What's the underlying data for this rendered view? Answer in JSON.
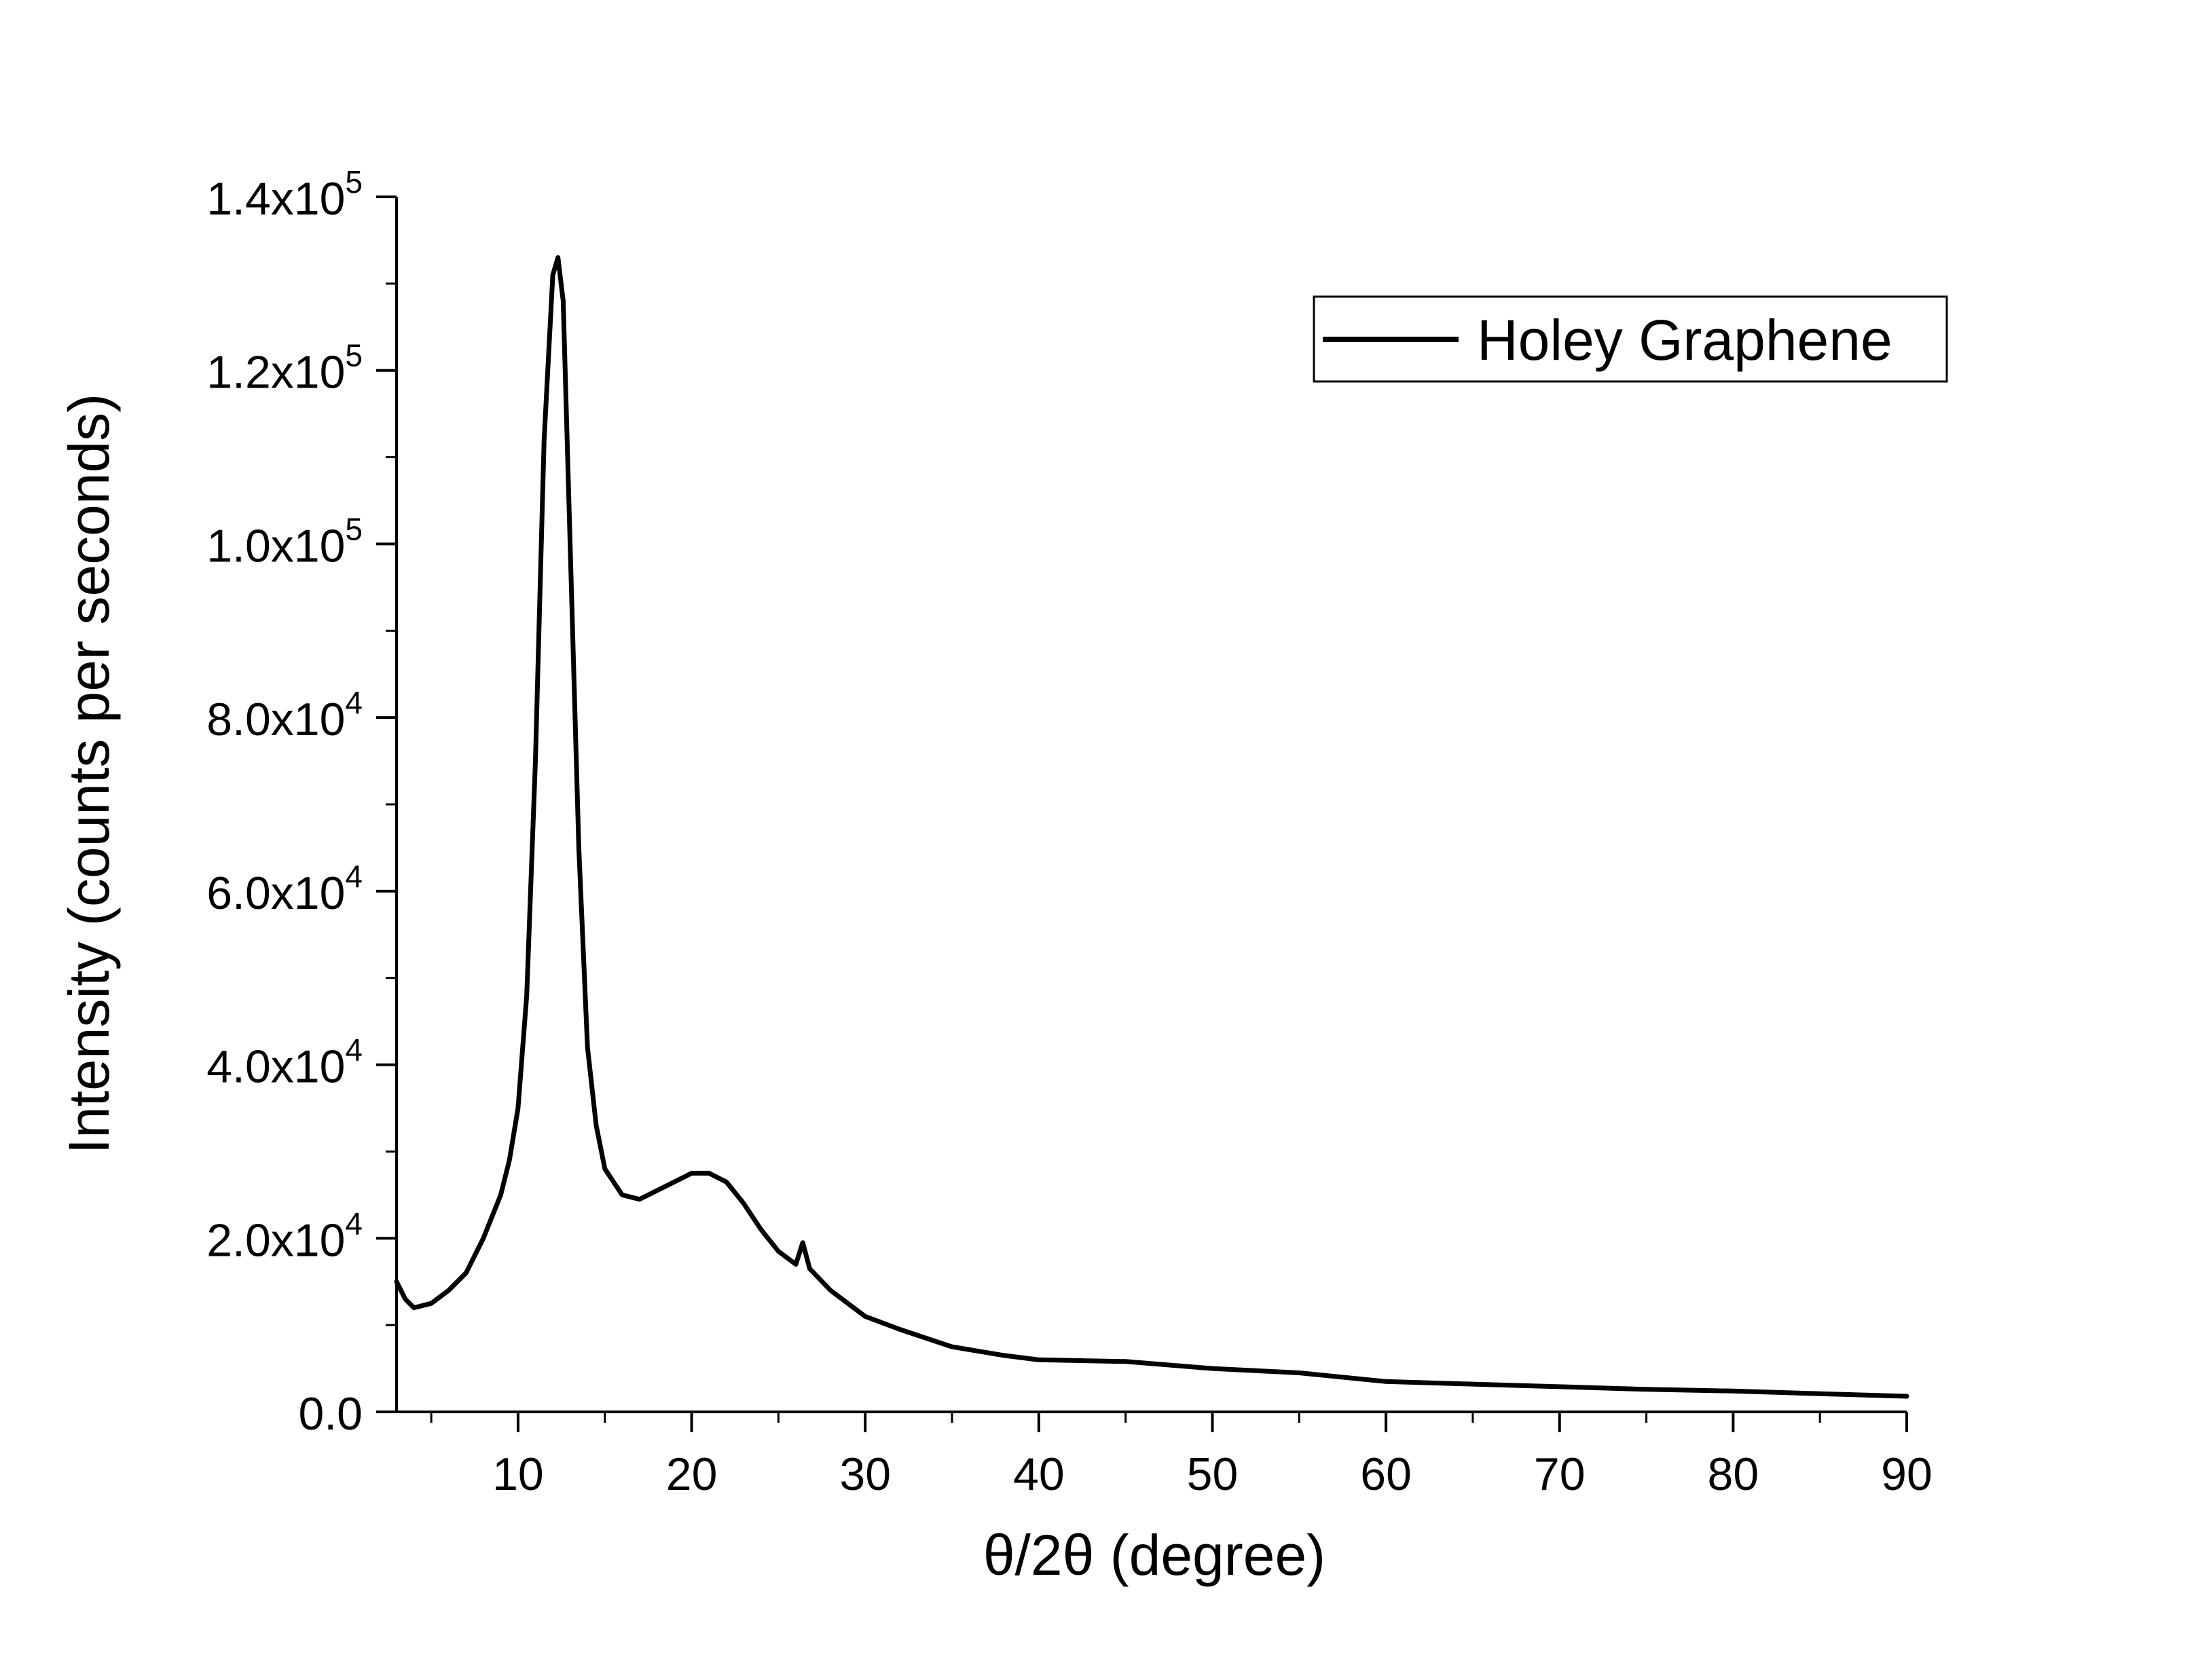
{
  "colors": {
    "background": "#ffffff",
    "line": "#000000",
    "axis": "#000000"
  },
  "chart_data": {
    "type": "line",
    "xlabel": "θ/2θ (degree)",
    "ylabel": "Intensity (counts per seconds)",
    "xlim": [
      3,
      90
    ],
    "ylim": [
      0,
      140000
    ],
    "x_ticks": [
      10,
      20,
      30,
      40,
      50,
      60,
      70,
      80,
      90
    ],
    "x_tick_labels": [
      "10",
      "20",
      "30",
      "40",
      "50",
      "60",
      "70",
      "80",
      "90"
    ],
    "y_ticks": [
      0,
      20000,
      40000,
      60000,
      80000,
      100000,
      120000,
      140000
    ],
    "y_tick_labels": [
      {
        "mantissa": "0.0",
        "exp": ""
      },
      {
        "mantissa": "2.0x10",
        "exp": "4"
      },
      {
        "mantissa": "4.0x10",
        "exp": "4"
      },
      {
        "mantissa": "6.0x10",
        "exp": "4"
      },
      {
        "mantissa": "8.0x10",
        "exp": "4"
      },
      {
        "mantissa": "1.0x10",
        "exp": "5"
      },
      {
        "mantissa": "1.2x10",
        "exp": "5"
      },
      {
        "mantissa": "1.4x10",
        "exp": "5"
      }
    ],
    "grid": false,
    "legend": {
      "position": "top-right",
      "entries": [
        "Holey Graphene"
      ]
    },
    "series": [
      {
        "name": "Holey Graphene",
        "x": [
          3,
          3.5,
          4,
          5,
          6,
          7,
          8,
          9,
          9.5,
          10,
          10.5,
          11,
          11.5,
          12,
          12.3,
          12.6,
          13,
          13.5,
          14,
          14.5,
          15,
          16,
          17,
          18,
          19,
          20,
          21,
          22,
          23,
          24,
          25,
          26,
          26.4,
          26.8,
          28,
          30,
          32,
          35,
          38,
          40,
          45,
          50,
          55,
          60,
          65,
          70,
          75,
          80,
          85,
          90
        ],
        "y": [
          15000,
          13000,
          12000,
          12500,
          14000,
          16000,
          20000,
          25000,
          29000,
          35000,
          48000,
          75000,
          112000,
          131000,
          133000,
          128000,
          100000,
          65000,
          42000,
          33000,
          28000,
          25000,
          24500,
          25500,
          26500,
          27500,
          27500,
          26500,
          24000,
          21000,
          18500,
          17000,
          19500,
          16500,
          14000,
          11000,
          9500,
          7500,
          6500,
          6000,
          5800,
          5000,
          4500,
          3500,
          3200,
          2900,
          2600,
          2400,
          2100,
          1800
        ]
      }
    ]
  }
}
